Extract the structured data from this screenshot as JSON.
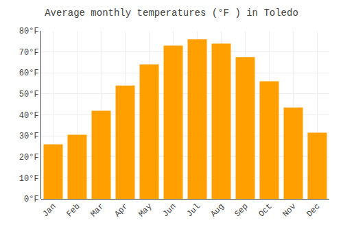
{
  "chart_data": {
    "type": "bar",
    "title": "Average monthly temperatures (°F ) in Toledo",
    "categories": [
      "Jan",
      "Feb",
      "Mar",
      "Apr",
      "May",
      "Jun",
      "Jul",
      "Aug",
      "Sep",
      "Oct",
      "Nov",
      "Dec"
    ],
    "values": [
      26.0,
      30.5,
      42.0,
      54.0,
      64.0,
      73.0,
      76.0,
      74.0,
      67.5,
      56.0,
      43.5,
      31.5
    ],
    "color": "#FFA000",
    "ylim": [
      0,
      80
    ],
    "yticks": [
      {
        "value": 0,
        "label": "0°F"
      },
      {
        "value": 10,
        "label": "10°F"
      },
      {
        "value": 20,
        "label": "20°F"
      },
      {
        "value": 30,
        "label": "30°F"
      },
      {
        "value": 40,
        "label": "40°F"
      },
      {
        "value": 50,
        "label": "50°F"
      },
      {
        "value": 60,
        "label": "60°F"
      },
      {
        "value": 70,
        "label": "70°F"
      },
      {
        "value": 80,
        "label": "80°F"
      }
    ],
    "grid": true
  }
}
